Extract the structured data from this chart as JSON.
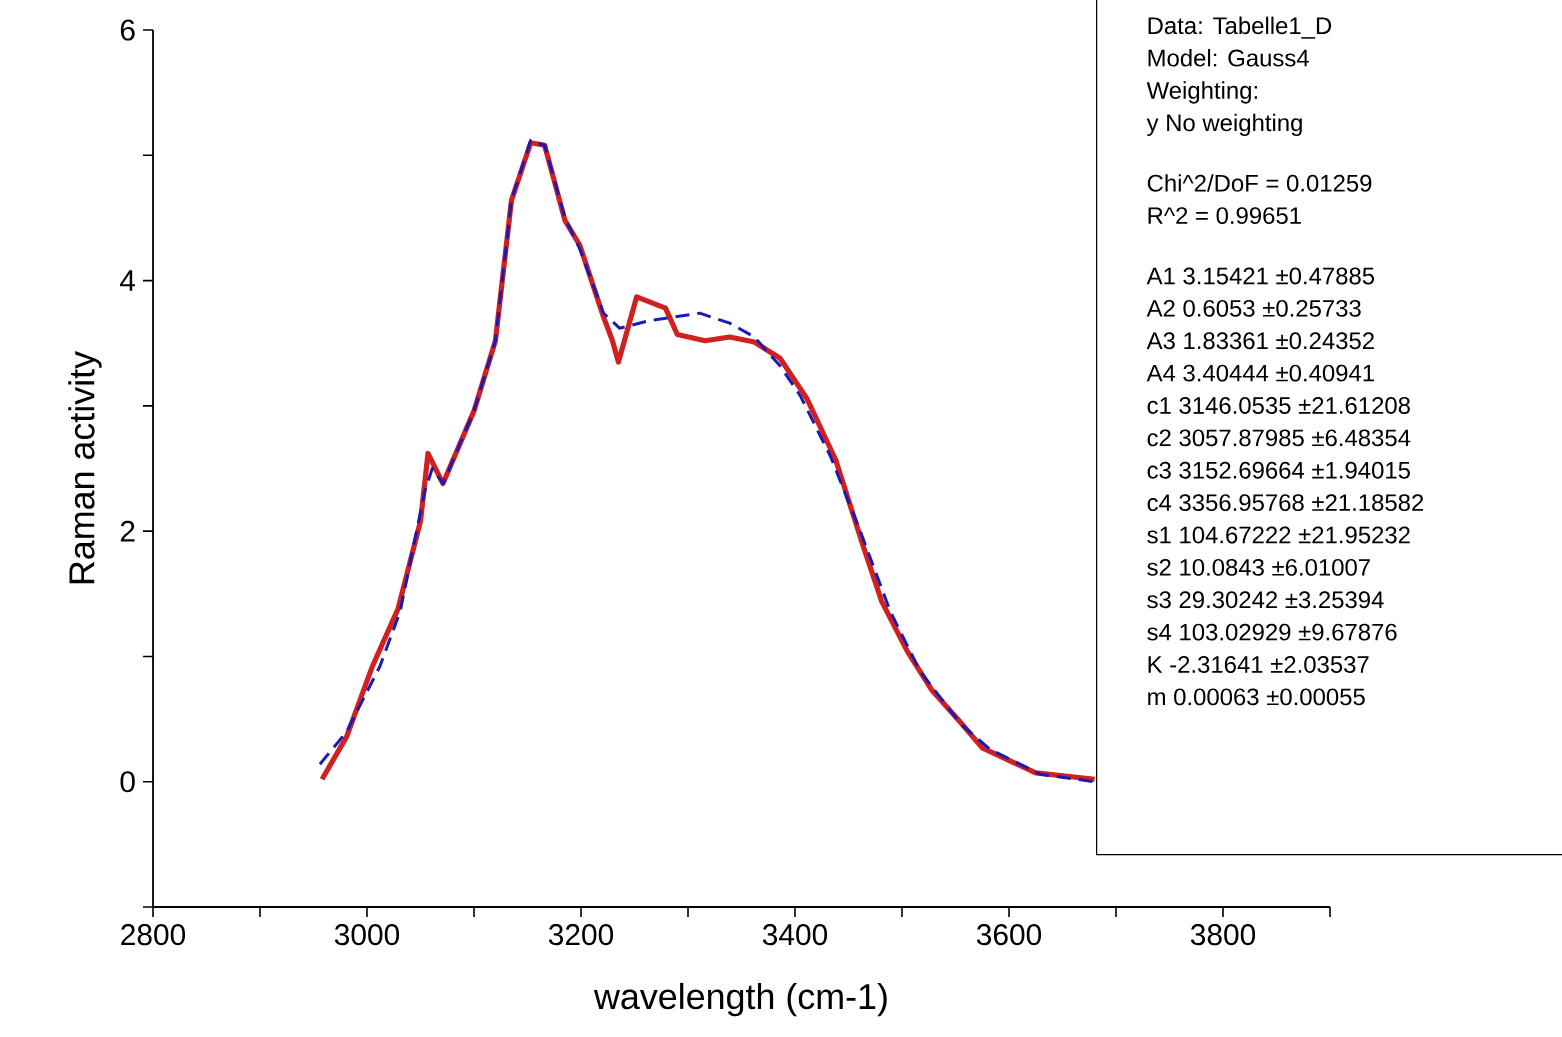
{
  "chart_data": {
    "type": "line",
    "xlabel": "wavelength (cm-1)",
    "ylabel": "Raman activity",
    "xlim": [
      2800,
      3900
    ],
    "ylim": [
      -1,
      6
    ],
    "xticks": [
      2800,
      {
        "value": 2900,
        "label": null
      },
      3000,
      {
        "value": 3100,
        "label": null
      },
      3200,
      {
        "value": 3300,
        "label": null
      },
      3400,
      {
        "value": 3500,
        "label": null
      },
      3600,
      {
        "value": 3700,
        "label": null
      },
      3800,
      {
        "value": 3900,
        "label": null
      }
    ],
    "yticks": [
      {
        "value": -1,
        "label": null
      },
      0,
      {
        "value": 1,
        "label": null
      },
      2,
      {
        "value": 3,
        "label": null
      },
      4,
      {
        "value": 5,
        "label": null
      },
      6
    ],
    "marker": "none",
    "series": [
      {
        "color": "#d02020",
        "line_style": "solid",
        "x": [
          2958,
          2981,
          3005,
          3029,
          3050,
          3057,
          3071,
          3100,
          3120,
          3135,
          3153,
          3166,
          3185,
          3199,
          3221,
          3229,
          3235,
          3252,
          3279,
          3290,
          3316,
          3339,
          3362,
          3386,
          3411,
          3438,
          3463,
          3481,
          3505,
          3528,
          3555,
          3575,
          3625,
          3680
        ],
        "values": [
          0.02,
          0.36,
          0.92,
          1.38,
          2.08,
          2.62,
          2.38,
          2.96,
          3.52,
          4.64,
          5.1,
          5.08,
          4.48,
          4.28,
          3.71,
          3.53,
          3.35,
          3.87,
          3.78,
          3.57,
          3.52,
          3.55,
          3.51,
          3.38,
          3.06,
          2.57,
          1.9,
          1.44,
          1.04,
          0.73,
          0.47,
          0.27,
          0.07,
          0.02
        ]
      },
      {
        "color": "#1a1ab4",
        "line_style": "dashed",
        "x": [
          2956,
          2981,
          3012,
          3031,
          3054,
          3061,
          3071,
          3100,
          3120,
          3135,
          3153,
          3166,
          3185,
          3199,
          3221,
          3236,
          3264,
          3311,
          3339,
          3362,
          3386,
          3405,
          3433,
          3461,
          3489,
          3517,
          3555,
          3582,
          3629,
          3680
        ],
        "values": [
          0.14,
          0.4,
          0.92,
          1.36,
          2.32,
          2.5,
          2.38,
          2.96,
          3.52,
          4.64,
          5.12,
          5.08,
          4.5,
          4.25,
          3.74,
          3.62,
          3.68,
          3.74,
          3.66,
          3.55,
          3.32,
          3.08,
          2.6,
          2.0,
          1.36,
          0.88,
          0.46,
          0.26,
          0.06,
          0.0
        ]
      }
    ],
    "annotations": [
      "Data: Tabelle1_D",
      "Model: Gauss4",
      "Weighting:",
      "y No weighting",
      "Chi^2/DoF = 0.01259",
      "R^2 = 0.99651",
      "A1 3.15421 ±0.47885",
      "A2 0.6053 ±0.25733",
      "A3 1.83361 ±0.24352",
      "A4 3.40444 ±0.40941",
      "c1 3146.0535 ±21.61208",
      "c2 3057.87985 ±6.48354",
      "c3 3152.69664 ±1.94015",
      "c4 3356.95768 ±21.18582",
      "s1 104.67222 ±21.95232",
      "s2 10.0843 ±6.01007",
      "s3 29.30242 ±3.25394",
      "s4 103.02929 ±9.67876",
      "K -2.31641 ±2.03537",
      "m 0.00063 ±0.00055"
    ]
  }
}
